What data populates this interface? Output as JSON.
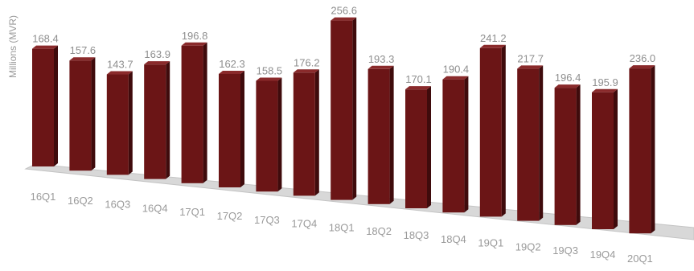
{
  "chart_data": {
    "type": "bar",
    "ylabel": "Millions (MVR)",
    "categories": [
      "16Q1",
      "16Q2",
      "16Q3",
      "16Q4",
      "17Q1",
      "17Q2",
      "17Q3",
      "17Q4",
      "18Q1",
      "18Q2",
      "18Q3",
      "18Q4",
      "19Q1",
      "19Q2",
      "19Q3",
      "19Q4",
      "20Q1"
    ],
    "values": [
      168.4,
      157.6,
      143.7,
      163.9,
      196.8,
      162.3,
      158.5,
      176.2,
      256.6,
      193.3,
      170.1,
      190.4,
      241.2,
      217.7,
      196.4,
      195.9,
      236.0
    ],
    "value_labels": [
      "168.4",
      "157.6",
      "143.7",
      "163.9",
      "196.8",
      "162.3",
      "158.5",
      "176.2",
      "256.6",
      "193.3",
      "170.1",
      "190.4",
      "241.2",
      "217.7",
      "196.4",
      "195.9",
      "236.0"
    ],
    "ylim": [
      0,
      260
    ],
    "grid": false,
    "legend": "none",
    "colors": {
      "bar_front": "#6b1516",
      "bar_side": "#3f0b0c",
      "bar_top": "#8a2a2b",
      "floor": "#d6d6d6"
    }
  }
}
